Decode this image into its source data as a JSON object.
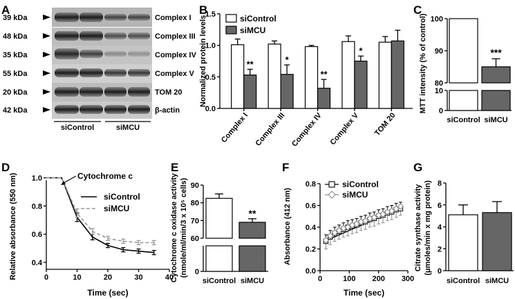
{
  "panels": {
    "A": {
      "letter": "A",
      "kda": [
        "39 kDa",
        "48 kDa",
        "35 kDa",
        "55 kDa",
        "20 kDa",
        "42 kDa"
      ],
      "bands": [
        "Complex I",
        "Complex III",
        "Complex IV",
        "Complex V",
        "TOM 20",
        "β-actin"
      ],
      "groups": [
        "siControl",
        "siMCU"
      ]
    },
    "B": {
      "letter": "B"
    },
    "C": {
      "letter": "C"
    },
    "D": {
      "letter": "D",
      "annotation": "Cytochrome c"
    },
    "E": {
      "letter": "E"
    },
    "F": {
      "letter": "F"
    },
    "G": {
      "letter": "G"
    }
  },
  "colors": {
    "control": "#ffffff",
    "mcu": "#666666",
    "mcu_line": "#999999",
    "axis": "#000000"
  },
  "chart_data": [
    {
      "id": "B",
      "type": "bar",
      "categories": [
        "Complex I",
        "Complex III",
        "Complex IV",
        "Complex V",
        "TOM 20"
      ],
      "ylabel": "Normalized protein levels",
      "ylim": [
        0,
        1.5
      ],
      "yticks": [
        "0.0",
        "0.5",
        "1.0",
        "1.5"
      ],
      "legend": "top-left",
      "series": [
        {
          "name": "siControl",
          "values": [
            1.01,
            1.02,
            0.98,
            1.06,
            1.05
          ],
          "errors": [
            0.09,
            0.05,
            0.02,
            0.09,
            0.09
          ]
        },
        {
          "name": "siMCU",
          "values": [
            0.53,
            0.54,
            0.32,
            0.75,
            1.07
          ],
          "errors": [
            0.09,
            0.15,
            0.14,
            0.08,
            0.17
          ]
        }
      ],
      "significance": [
        "**",
        "*",
        "**",
        "*",
        ""
      ]
    },
    {
      "id": "C",
      "type": "bar",
      "categories": [
        "siControl",
        "siMCU"
      ],
      "values": [
        100,
        85
      ],
      "errors": [
        0,
        2.5
      ],
      "ylabel": "MTT intensity (% of control)",
      "yticks": [
        "0",
        "10",
        "80",
        "90",
        "100"
      ],
      "axis_break": true,
      "significance": [
        "",
        "***"
      ]
    },
    {
      "id": "D",
      "type": "line",
      "xlabel": "Time (sec)",
      "ylabel": "Relative absorbance (550 nm)",
      "xlim": [
        0,
        40
      ],
      "ylim": [
        0.4,
        1.0
      ],
      "xticks": [
        "0",
        "10",
        "20",
        "30",
        "40"
      ],
      "yticks": [
        "0.4",
        "0.6",
        "0.8",
        "1.0"
      ],
      "x": [
        0,
        5,
        10,
        15,
        20,
        25,
        30,
        35
      ],
      "series": [
        {
          "name": "siControl",
          "values": [
            1.0,
            1.0,
            0.72,
            0.58,
            0.52,
            0.49,
            0.48,
            0.47
          ],
          "errors": [
            0,
            0,
            0.03,
            0.02,
            0.015,
            0.015,
            0.015,
            0.015
          ]
        },
        {
          "name": "siMCU",
          "values": [
            1.0,
            1.0,
            0.75,
            0.62,
            0.57,
            0.55,
            0.54,
            0.54
          ],
          "errors": [
            0,
            0,
            0.03,
            0.02,
            0.015,
            0.015,
            0.015,
            0.015
          ]
        }
      ],
      "legend": "middle-right"
    },
    {
      "id": "E",
      "type": "bar",
      "categories": [
        "siControl",
        "siMCU"
      ],
      "values": [
        82.5,
        69
      ],
      "errors": [
        2.5,
        2
      ],
      "ylabel": "Cytochrome c oxidase activity (nmole/ml/min/3 x 10⁵ cells)",
      "yticks": [
        "0",
        "60",
        "70",
        "80",
        "90"
      ],
      "axis_break": true,
      "significance": [
        "",
        "**"
      ]
    },
    {
      "id": "F",
      "type": "line",
      "xlabel": "Time (sec)",
      "ylabel": "Absorbance (412 nm)",
      "xlim": [
        0,
        300
      ],
      "ylim": [
        0,
        0.8
      ],
      "xticks": [
        "0",
        "100",
        "200",
        "300"
      ],
      "yticks": [
        "0.0",
        "0.2",
        "0.4",
        "0.6",
        "0.8"
      ],
      "x": [
        20,
        35,
        50,
        65,
        80,
        95,
        110,
        125,
        140,
        155,
        170,
        185,
        200,
        215,
        230,
        245,
        260,
        275
      ],
      "series": [
        {
          "name": "siControl",
          "values": [
            0.27,
            0.31,
            0.34,
            0.36,
            0.38,
            0.4,
            0.41,
            0.42,
            0.44,
            0.45,
            0.47,
            0.48,
            0.5,
            0.51,
            0.53,
            0.54,
            0.56,
            0.57
          ],
          "errors": [
            0.06,
            0.06,
            0.06,
            0.06,
            0.06,
            0.06,
            0.06,
            0.06,
            0.06,
            0.06,
            0.06,
            0.06,
            0.06,
            0.06,
            0.06,
            0.06,
            0.06,
            0.06
          ]
        },
        {
          "name": "siMCU",
          "values": [
            0.28,
            0.32,
            0.35,
            0.37,
            0.39,
            0.4,
            0.42,
            0.43,
            0.45,
            0.46,
            0.48,
            0.49,
            0.51,
            0.52,
            0.54,
            0.55,
            0.57,
            0.59
          ],
          "errors": [
            0.08,
            0.08,
            0.08,
            0.08,
            0.08,
            0.08,
            0.08,
            0.08,
            0.08,
            0.08,
            0.08,
            0.08,
            0.08,
            0.08,
            0.08,
            0.08,
            0.08,
            0.08
          ]
        }
      ],
      "legend": "top-left"
    },
    {
      "id": "G",
      "type": "bar",
      "categories": [
        "siControl",
        "siMCU"
      ],
      "values": [
        5.1,
        5.3
      ],
      "errors": [
        0.9,
        1.0
      ],
      "ylabel": "Citrate synthase activity (μmoles/min x mg protein)",
      "ylim": [
        0,
        8
      ],
      "yticks": [
        "0",
        "2",
        "4",
        "6",
        "8"
      ]
    }
  ]
}
